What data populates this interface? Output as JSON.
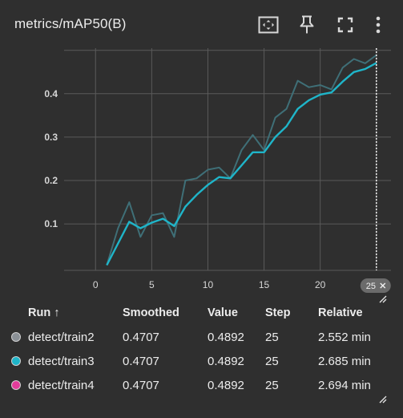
{
  "card": {
    "title": "metrics/mAP50(B)"
  },
  "toolbar": {
    "icons": [
      "fit-domain-icon",
      "pin-icon",
      "fullscreen-icon",
      "more-vert-icon"
    ]
  },
  "chart_data": {
    "type": "line",
    "title": "metrics/mAP50(B)",
    "xlabel": "",
    "ylabel": "",
    "xlim": [
      -2.8,
      26.3
    ],
    "ylim": [
      -0.007,
      0.505
    ],
    "x_ticks": [
      "0",
      "5",
      "10",
      "15",
      "20"
    ],
    "y_ticks": [
      "0.1",
      "0.2",
      "0.3",
      "0.4"
    ],
    "x_tick_values": [
      0,
      5,
      10,
      15,
      20
    ],
    "y_tick_values": [
      0.1,
      0.2,
      0.3,
      0.4
    ],
    "grid": true,
    "hover_step": 25,
    "series": [
      {
        "name": "detect/train3",
        "color": "#1fb5c9",
        "kind": "smoothed",
        "x": [
          1,
          2,
          3,
          4,
          5,
          6,
          7,
          8,
          9,
          10,
          11,
          12,
          13,
          14,
          15,
          16,
          17,
          18,
          19,
          20,
          21,
          22,
          23,
          24,
          25
        ],
        "y": [
          0.005,
          0.055,
          0.105,
          0.09,
          0.103,
          0.112,
          0.095,
          0.14,
          0.167,
          0.19,
          0.208,
          0.205,
          0.235,
          0.265,
          0.265,
          0.3,
          0.325,
          0.365,
          0.385,
          0.398,
          0.403,
          0.428,
          0.45,
          0.457,
          0.471
        ]
      },
      {
        "name": "raw",
        "color": "#3f6f77",
        "kind": "raw",
        "x": [
          1,
          2,
          3,
          4,
          5,
          6,
          7,
          8,
          9,
          10,
          11,
          12,
          13,
          14,
          15,
          16,
          17,
          18,
          19,
          20,
          21,
          22,
          23,
          24,
          25
        ],
        "y": [
          0.005,
          0.09,
          0.15,
          0.07,
          0.12,
          0.125,
          0.07,
          0.2,
          0.205,
          0.225,
          0.23,
          0.205,
          0.27,
          0.305,
          0.27,
          0.345,
          0.365,
          0.43,
          0.415,
          0.42,
          0.41,
          0.46,
          0.48,
          0.47,
          0.489
        ]
      }
    ]
  },
  "badge": {
    "label": "25"
  },
  "table": {
    "headers": {
      "run": "Run ↑",
      "smoothed": "Smoothed",
      "value": "Value",
      "step": "Step",
      "relative": "Relative"
    },
    "rows": [
      {
        "color": "#8a9096",
        "run": "detect/train2",
        "smoothed": "0.4707",
        "value": "0.4892",
        "step": "25",
        "relative": "2.552 min"
      },
      {
        "color": "#1fb5c9",
        "run": "detect/train3",
        "smoothed": "0.4707",
        "value": "0.4892",
        "step": "25",
        "relative": "2.685 min"
      },
      {
        "color": "#e23c9a",
        "run": "detect/train4",
        "smoothed": "0.4707",
        "value": "0.4892",
        "step": "25",
        "relative": "2.694 min"
      }
    ]
  }
}
